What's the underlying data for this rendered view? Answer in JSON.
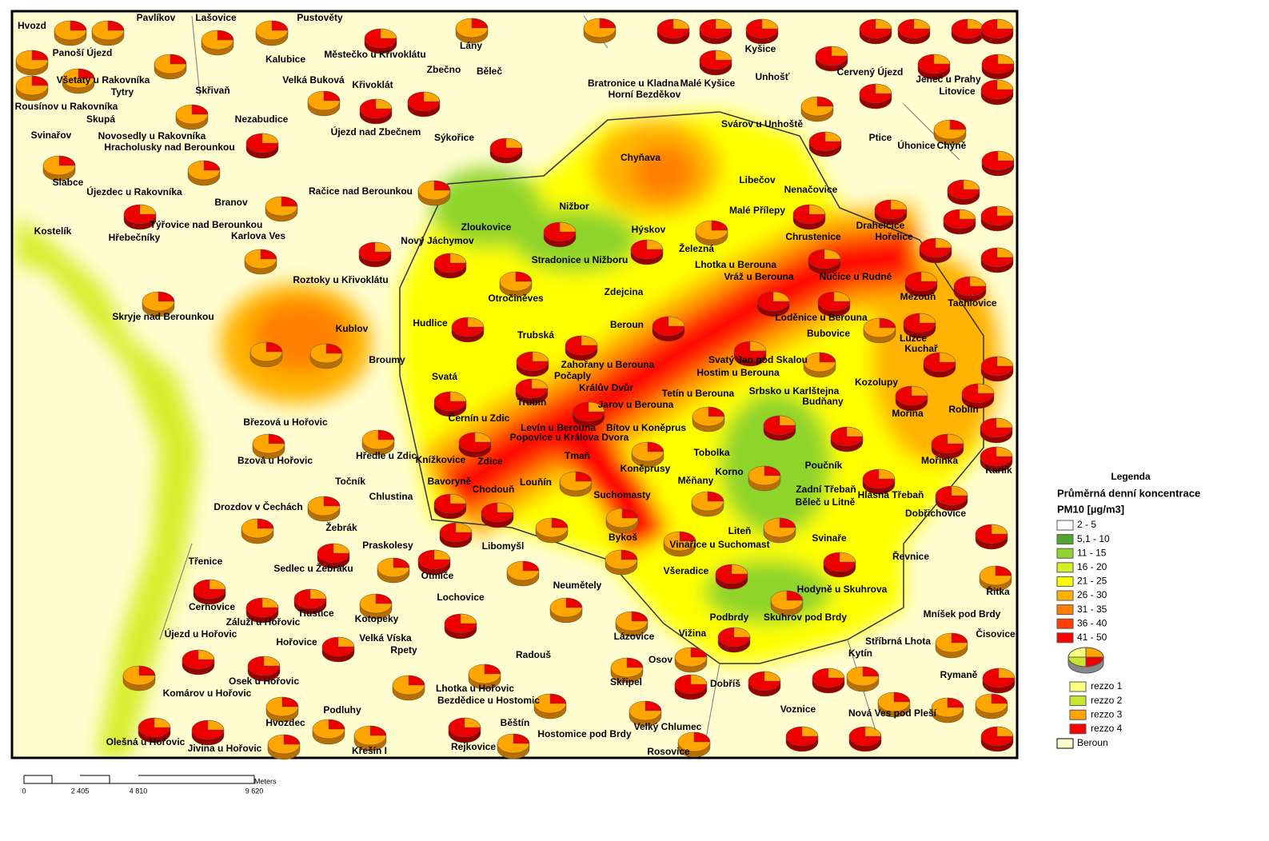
{
  "map": {
    "places": [
      "Hvozd",
      "Pavlíkov",
      "Lašovice",
      "Pustověty",
      "Panoší Újezd",
      "Městečko u Křivoklátu",
      "Lány",
      "Běleč",
      "Kalubice",
      "Zbečno",
      "Všetaty u Rakovníka",
      "Velká Buková",
      "Křivoklát",
      "Tytry",
      "Skřivaň",
      "Rousínov u Rakovníka",
      "Skupá",
      "Nezabudice",
      "Bratronice u Kladna",
      "Malé Kyšice",
      "Horní Bezděkov",
      "Kyšice",
      "Unhošť",
      "Červený Újezd",
      "Jeneč u Prahy",
      "Litovice",
      "Svinařov",
      "Novosedly u Rakovníka",
      "Hracholusky nad Berounkou",
      "Újezd nad Zbečnem",
      "Sýkořice",
      "Svárov u Unhoště",
      "Ptice",
      "Úhonice",
      "Chýně",
      "Chyňava",
      "Slabce",
      "Újezdec u Rakovníka",
      "Račice nad Berounkou",
      "Libečov",
      "Nenačovice",
      "Branov",
      "Nižbor",
      "Malé Přílepy",
      "Týřovice nad Berounkou",
      "Kostelík",
      "Zloukovice",
      "Hýskov",
      "Chrustenice",
      "Drahelčice",
      "Hořelice",
      "Hřebečníky",
      "Karlova Ves",
      "Nový Jáchymov",
      "Železná",
      "Stradonice u Nižboru",
      "Lhotka u Berouna",
      "Vráž u Berouna",
      "Nučice u Rudné",
      "Roztoky u Křivoklátu",
      "Zdejcina",
      "Otročiněves",
      "Mezouň",
      "Tachlovice",
      "Skryje nad Berounkou",
      "Loděnice u Berouna",
      "Hudlice",
      "Beroun",
      "Kublov",
      "Bubovice",
      "Trubská",
      "Lužce",
      "Kuchař",
      "Svatý Jan pod Skalou",
      "Zahořany u Berouna",
      "Broumy",
      "Hostim u Berouna",
      "Svatá",
      "Počaply",
      "Králův Dvůr",
      "Kozolupy",
      "Tetín u Berouna",
      "Srbsko u Karlštejna",
      "Trubín",
      "Jarov u Berouna",
      "Budňany",
      "Roblín",
      "Mořina",
      "Březová u Hořovic",
      "Černín u Zdic",
      "Levín u Berouna",
      "Bítov u Koněprus",
      "Popovice u Králova Dvora",
      "Bzová u Hořovic",
      "Hředle u Zdic",
      "Knížkovice",
      "Zdice",
      "Tmaň",
      "Koněprusy",
      "Tobolka",
      "Mořinka",
      "Karlík",
      "Točník",
      "Bavoryně",
      "Chodouň",
      "Louňín",
      "Měňany",
      "Korno",
      "Poučník",
      "Chlustina",
      "Suchomasty",
      "Zadní Třebaň",
      "Běleč u Litně",
      "Hlásná Třebaň",
      "Drozdov v Čechách",
      "Dobřichovice",
      "Žebrák",
      "Libomyšl",
      "Liteň",
      "Bykoš",
      "Svinaře",
      "Vinařice u Suchomast",
      "Praskolesy",
      "Třenice",
      "Řevnice",
      "Sedlec u Žebráku",
      "Otmíče",
      "Všeradice",
      "Neumětely",
      "Hodyně u Skuhrova",
      "Řitka",
      "Lochovice",
      "Cerhovice",
      "Záluží u Hořovic",
      "Tlustice",
      "Kotopeky",
      "Mníšek pod Brdy",
      "Podbrdy",
      "Skuhrov pod Brdy",
      "Újezd u Hořovic",
      "Vižina",
      "Lázovice",
      "Velká Víska",
      "Hořovice",
      "Stříbrná Lhota",
      "Čisovice",
      "Rpety",
      "Kytín",
      "Radouš",
      "Osov",
      "Skřipel",
      "Osek u Hořovic",
      "Dobříš",
      "Rymaně",
      "Komárov u Hořovic",
      "Lhotka u Hořovic",
      "Bezdědice u Hostomic",
      "Hvozdec",
      "Podluhy",
      "Voznice",
      "Nová Ves pod Pleší",
      "Běštín",
      "Velký Chlumec",
      "Hostomice pod Brdy",
      "Olešná u Hořovic",
      "Jivina u Hořovic",
      "Rejkovice",
      "Křešín I",
      "Rosovice"
    ]
  },
  "legend": {
    "title": "Legenda",
    "subtitle": [
      "Průměrná denní koncentrace",
      "PM10 [µg/m3]"
    ],
    "classes": [
      {
        "label": "2 - 5",
        "color": "#ffffff"
      },
      {
        "label": "5,1 - 10",
        "color": "#4ea62a"
      },
      {
        "label": "11 - 15",
        "color": "#8fd42a"
      },
      {
        "label": "16 - 20",
        "color": "#d6ee2a"
      },
      {
        "label": "21 - 25",
        "color": "#ffff00"
      },
      {
        "label": "26 - 30",
        "color": "#ffb300"
      },
      {
        "label": "31 - 35",
        "color": "#ff8000"
      },
      {
        "label": "36 - 40",
        "color": "#ff4000"
      },
      {
        "label": "41 - 50",
        "color": "#ff0000"
      }
    ],
    "rezzo": [
      {
        "label": "rezzo 1",
        "color": "#ffff80"
      },
      {
        "label": "rezzo 2",
        "color": "#c8e632"
      },
      {
        "label": "rezzo 3",
        "color": "#ffa500"
      },
      {
        "label": "rezzo 4",
        "color": "#ff0000"
      }
    ],
    "district": {
      "label": "Beroun",
      "color": "#ffffcc"
    }
  },
  "scale": {
    "labels": [
      "0",
      "2 405",
      "4 810",
      "9 620"
    ],
    "unit": "Meters"
  }
}
